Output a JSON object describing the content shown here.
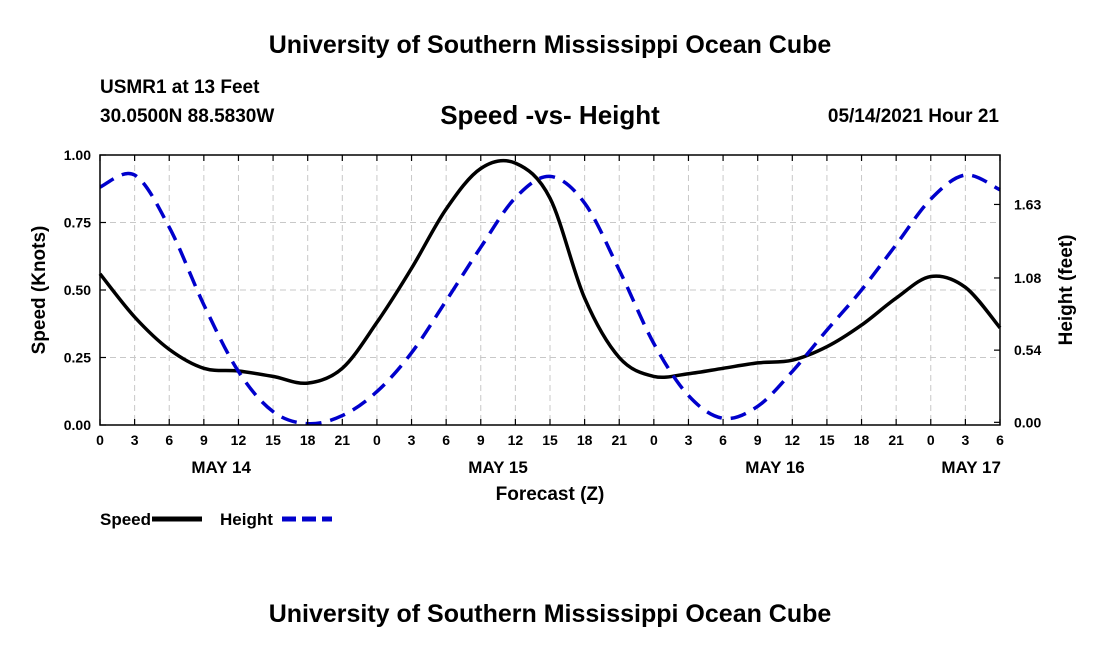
{
  "page": {
    "top_title": "University of Southern Mississippi Ocean Cube",
    "bottom_title": "University of Southern Mississippi Ocean Cube",
    "station_name": "USMR1 at 13 Feet",
    "station_coords": "30.0500N  88.5830W",
    "valid_time": "05/14/2021 Hour 21"
  },
  "chart_data": {
    "type": "line",
    "title": "Speed -vs- Height",
    "xlabel": "Forecast (Z)",
    "ylabel": "Speed (Knots)",
    "y2label": "Height (feet)",
    "x_range_hours": [
      0,
      78
    ],
    "x_tick_hours": [
      0,
      3,
      6,
      9,
      12,
      15,
      18,
      21,
      24,
      27,
      30,
      33,
      36,
      39,
      42,
      45,
      48,
      51,
      54,
      57,
      60,
      63,
      66,
      69,
      72,
      75,
      78
    ],
    "x_tick_labels": [
      "0",
      "3",
      "6",
      "9",
      "12",
      "15",
      "18",
      "21",
      "0",
      "3",
      "6",
      "9",
      "12",
      "15",
      "18",
      "21",
      "0",
      "3",
      "6",
      "9",
      "12",
      "15",
      "18",
      "21",
      "0",
      "3",
      "6"
    ],
    "day_labels": [
      {
        "hour": 10.5,
        "label": "MAY 14"
      },
      {
        "hour": 34.5,
        "label": "MAY 15"
      },
      {
        "hour": 58.5,
        "label": "MAY 16"
      },
      {
        "hour": 75.5,
        "label": "MAY 17"
      }
    ],
    "ylim": [
      0,
      1.0
    ],
    "y_ticks": [
      0.0,
      0.25,
      0.5,
      0.75,
      1.0
    ],
    "y_tick_labels": [
      "0.00",
      "0.25",
      "0.50",
      "0.75",
      "1.00"
    ],
    "y2lim": [
      -0.02,
      2.0
    ],
    "y2_ticks": [
      0.0,
      0.54,
      1.08,
      1.63
    ],
    "y2_tick_labels": [
      "0.00",
      "0.54",
      "1.08",
      "1.63"
    ],
    "grid": true,
    "series": [
      {
        "name": "Speed",
        "axis": "left",
        "color": "#000000",
        "style": "solid",
        "x": [
          0,
          3,
          6,
          9,
          12,
          15,
          18,
          21,
          24,
          27,
          30,
          33,
          36,
          39,
          42,
          45,
          48,
          51,
          54,
          57,
          60,
          63,
          66,
          69,
          72,
          75,
          78
        ],
        "y": [
          0.56,
          0.4,
          0.28,
          0.21,
          0.2,
          0.18,
          0.155,
          0.21,
          0.38,
          0.58,
          0.8,
          0.95,
          0.97,
          0.84,
          0.47,
          0.25,
          0.18,
          0.19,
          0.21,
          0.23,
          0.24,
          0.29,
          0.37,
          0.47,
          0.55,
          0.51,
          0.36
        ]
      },
      {
        "name": "Height",
        "axis": "right",
        "color": "#0000cc",
        "style": "dashed",
        "x": [
          0,
          3,
          6,
          9,
          12,
          15,
          18,
          21,
          24,
          27,
          30,
          33,
          36,
          39,
          42,
          45,
          48,
          51,
          54,
          57,
          60,
          63,
          66,
          69,
          72,
          75,
          78
        ],
        "y": [
          1.76,
          1.85,
          1.46,
          0.88,
          0.38,
          0.08,
          -0.01,
          0.05,
          0.23,
          0.52,
          0.91,
          1.31,
          1.68,
          1.84,
          1.64,
          1.14,
          0.59,
          0.2,
          0.03,
          0.12,
          0.38,
          0.69,
          0.99,
          1.33,
          1.67,
          1.85,
          1.74
        ]
      }
    ],
    "legend": {
      "placement": "bottom-left",
      "items": [
        {
          "label": "Speed",
          "color": "#000000",
          "style": "solid"
        },
        {
          "label": "Height",
          "color": "#0000cc",
          "style": "dashed"
        }
      ]
    }
  }
}
